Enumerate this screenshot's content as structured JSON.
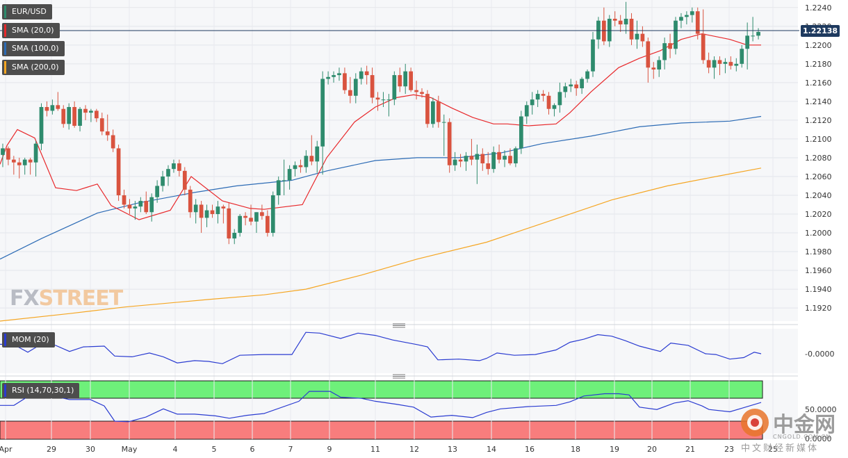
{
  "chart_data": {
    "type": "candlestick",
    "symbol": "EUR/USD",
    "current_price": "1.22138",
    "price_axis": {
      "range": [
        1.1906,
        1.2248
      ],
      "ticks": [
        "1.2240",
        "1.2220",
        "1.2200",
        "1.2180",
        "1.2160",
        "1.2140",
        "1.2120",
        "1.2100",
        "1.2080",
        "1.2060",
        "1.2040",
        "1.2020",
        "1.2000",
        "1.1980",
        "1.1960",
        "1.1940",
        "1.1920"
      ]
    },
    "x_axis_labels": [
      "Apr",
      "29",
      "30",
      "May",
      "4",
      "5",
      "6",
      "7",
      "9",
      "11",
      "12",
      "13",
      "14",
      "16",
      "18",
      "19",
      "20",
      "21",
      "23",
      "25"
    ],
    "legends": {
      "symbol": "EUR/USD",
      "sma20": "SMA (20,0)",
      "sma100": "SMA (100,0)",
      "sma200": "SMA (200,0)",
      "mom": "MOM (20)",
      "rsi": "RSI (14,70,30,1)"
    },
    "indicator_ticks": {
      "mom": "-0.0000",
      "rsi_mid": "50.0000",
      "rsi_low": "0.0000"
    },
    "candles": [
      [
        1.2083,
        1.2095,
        1.207,
        1.209
      ],
      [
        1.209,
        1.2092,
        1.2072,
        1.2078
      ],
      [
        1.2078,
        1.2082,
        1.2062,
        1.2075
      ],
      [
        1.2075,
        1.208,
        1.2058,
        1.2072
      ],
      [
        1.2072,
        1.208,
        1.2062,
        1.2078
      ],
      [
        1.2078,
        1.208,
        1.2062,
        1.2075
      ],
      [
        1.2075,
        1.2098,
        1.206,
        1.2095
      ],
      [
        1.2095,
        1.2138,
        1.2088,
        1.2134
      ],
      [
        1.2134,
        1.214,
        1.2124,
        1.213
      ],
      [
        1.213,
        1.2142,
        1.2126,
        1.2136
      ],
      [
        1.2136,
        1.215,
        1.213,
        1.2132
      ],
      [
        1.2132,
        1.2136,
        1.2112,
        1.2116
      ],
      [
        1.2116,
        1.2138,
        1.211,
        1.2134
      ],
      [
        1.2134,
        1.214,
        1.2112,
        1.2114
      ],
      [
        1.2114,
        1.2134,
        1.2108,
        1.2132
      ],
      [
        1.2132,
        1.2136,
        1.212,
        1.2128
      ],
      [
        1.2128,
        1.2132,
        1.2118,
        1.213
      ],
      [
        1.213,
        1.2132,
        1.2118,
        1.2122
      ],
      [
        1.2122,
        1.2128,
        1.2104,
        1.2108
      ],
      [
        1.2108,
        1.2126,
        1.2098,
        1.2104
      ],
      [
        1.2104,
        1.211,
        1.2086,
        1.209
      ],
      [
        1.209,
        1.2094,
        1.2034,
        1.204
      ],
      [
        1.204,
        1.2046,
        1.2026,
        1.203
      ],
      [
        1.203,
        1.2036,
        1.202,
        1.2026
      ],
      [
        1.2026,
        1.2034,
        1.2014,
        1.2028
      ],
      [
        1.2028,
        1.2038,
        1.2022,
        1.2034
      ],
      [
        1.2034,
        1.2044,
        1.202,
        1.2022
      ],
      [
        1.2022,
        1.2042,
        1.2012,
        1.2038
      ],
      [
        1.2038,
        1.2056,
        1.2032,
        1.205
      ],
      [
        1.205,
        1.2066,
        1.2044,
        1.206
      ],
      [
        1.206,
        1.2072,
        1.205,
        1.2068
      ],
      [
        1.2068,
        1.2078,
        1.2064,
        1.2074
      ],
      [
        1.2074,
        1.2078,
        1.206,
        1.2066
      ],
      [
        1.2066,
        1.207,
        1.204,
        1.2046
      ],
      [
        1.2046,
        1.205,
        1.2016,
        1.2022
      ],
      [
        1.2022,
        1.2036,
        1.201,
        1.203
      ],
      [
        1.203,
        1.2034,
        1.2,
        1.2016
      ],
      [
        1.2016,
        1.203,
        1.2006,
        1.2024
      ],
      [
        1.2024,
        1.203,
        1.2016,
        1.202
      ],
      [
        1.202,
        1.2034,
        1.201,
        1.2028
      ],
      [
        1.2028,
        1.203,
        1.201,
        1.2026
      ],
      [
        1.2026,
        1.2032,
        1.1988,
        1.1994
      ],
      [
        1.1994,
        1.2004,
        1.1988,
        1.2
      ],
      [
        1.2,
        1.202,
        1.1996,
        1.2018
      ],
      [
        1.2018,
        1.2022,
        1.2008,
        1.2016
      ],
      [
        1.2016,
        1.203,
        1.2008,
        1.2012
      ],
      [
        1.2012,
        1.2022,
        1.2,
        1.2022
      ],
      [
        1.2022,
        1.203,
        1.2014,
        1.2018
      ],
      [
        1.2018,
        1.2024,
        1.1996,
        1.2
      ],
      [
        1.2,
        1.2044,
        1.1996,
        1.204
      ],
      [
        1.204,
        1.206,
        1.203,
        1.2056
      ],
      [
        1.2056,
        1.2078,
        1.204,
        1.2056
      ],
      [
        1.2056,
        1.2072,
        1.2046,
        1.2068
      ],
      [
        1.2068,
        1.2076,
        1.206,
        1.2072
      ],
      [
        1.2072,
        1.2078,
        1.2064,
        1.207
      ],
      [
        1.207,
        1.2088,
        1.2064,
        1.2082
      ],
      [
        1.2082,
        1.2104,
        1.2072,
        1.2076
      ],
      [
        1.2076,
        1.2098,
        1.2064,
        1.2092
      ],
      [
        1.2092,
        1.2172,
        1.2062,
        1.2164
      ],
      [
        1.2164,
        1.2172,
        1.2158,
        1.2166
      ],
      [
        1.2166,
        1.2172,
        1.216,
        1.2168
      ],
      [
        1.2168,
        1.2176,
        1.2162,
        1.217
      ],
      [
        1.217,
        1.2176,
        1.2148,
        1.2152
      ],
      [
        1.2152,
        1.2166,
        1.2138,
        1.2146
      ],
      [
        1.2146,
        1.217,
        1.2138,
        1.2164
      ],
      [
        1.2164,
        1.2176,
        1.2158,
        1.2172
      ],
      [
        1.2172,
        1.2178,
        1.2158,
        1.2168
      ],
      [
        1.2168,
        1.2176,
        1.2138,
        1.2144
      ],
      [
        1.2144,
        1.215,
        1.213,
        1.2142
      ],
      [
        1.2142,
        1.215,
        1.2134,
        1.2142
      ],
      [
        1.2142,
        1.2148,
        1.2124,
        1.2142
      ],
      [
        1.2142,
        1.2172,
        1.2136,
        1.2168
      ],
      [
        1.2168,
        1.2176,
        1.215,
        1.2156
      ],
      [
        1.2156,
        1.218,
        1.2148,
        1.2172
      ],
      [
        1.2172,
        1.2176,
        1.215,
        1.2152
      ],
      [
        1.2152,
        1.2162,
        1.2142,
        1.215
      ],
      [
        1.215,
        1.2154,
        1.2144,
        1.2148
      ],
      [
        1.2148,
        1.2152,
        1.2112,
        1.2116
      ],
      [
        1.2116,
        1.2144,
        1.2112,
        1.214
      ],
      [
        1.214,
        1.2146,
        1.2112,
        1.2118
      ],
      [
        1.2118,
        1.2126,
        1.2082,
        1.2118
      ],
      [
        1.2118,
        1.2122,
        1.2064,
        1.2072
      ],
      [
        1.2072,
        1.2086,
        1.2066,
        1.2078
      ],
      [
        1.2078,
        1.2084,
        1.207,
        1.2076
      ],
      [
        1.2076,
        1.2086,
        1.2066,
        1.2082
      ],
      [
        1.2082,
        1.21,
        1.2072,
        1.2078
      ],
      [
        1.2078,
        1.2094,
        1.2052,
        1.2084
      ],
      [
        1.2084,
        1.209,
        1.2066,
        1.2074
      ],
      [
        1.2074,
        1.2086,
        1.2062,
        1.2068
      ],
      [
        1.2068,
        1.2092,
        1.2064,
        1.2086
      ],
      [
        1.2086,
        1.2094,
        1.2074,
        1.2078
      ],
      [
        1.2078,
        1.2088,
        1.207,
        1.2082
      ],
      [
        1.2082,
        1.209,
        1.2072,
        1.2074
      ],
      [
        1.2074,
        1.2092,
        1.207,
        1.209
      ],
      [
        1.209,
        1.213,
        1.2084,
        1.2124
      ],
      [
        1.2124,
        1.214,
        1.2116,
        1.2136
      ],
      [
        1.2136,
        1.215,
        1.2126,
        1.2142
      ],
      [
        1.2142,
        1.2152,
        1.2134,
        1.2148
      ],
      [
        1.2148,
        1.2152,
        1.214,
        1.2146
      ],
      [
        1.2146,
        1.215,
        1.2126,
        1.2132
      ],
      [
        1.2132,
        1.2138,
        1.2124,
        1.2136
      ],
      [
        1.2136,
        1.216,
        1.2128,
        1.215
      ],
      [
        1.215,
        1.216,
        1.2144,
        1.2156
      ],
      [
        1.2156,
        1.2164,
        1.215,
        1.2158
      ],
      [
        1.2158,
        1.2162,
        1.2146,
        1.2154
      ],
      [
        1.2154,
        1.2166,
        1.2148,
        1.2164
      ],
      [
        1.2164,
        1.2174,
        1.216,
        1.2172
      ],
      [
        1.2172,
        1.2214,
        1.2166,
        1.2206
      ],
      [
        1.2206,
        1.223,
        1.2196,
        1.2226
      ],
      [
        1.2226,
        1.224,
        1.22,
        1.2204
      ],
      [
        1.2204,
        1.2232,
        1.2198,
        1.2228
      ],
      [
        1.2228,
        1.2236,
        1.222,
        1.2226
      ],
      [
        1.2226,
        1.2232,
        1.2214,
        1.2222
      ],
      [
        1.2222,
        1.2246,
        1.2212,
        1.2228
      ],
      [
        1.2228,
        1.2234,
        1.22,
        1.2206
      ],
      [
        1.2206,
        1.2226,
        1.2196,
        1.2212
      ],
      [
        1.2212,
        1.222,
        1.2198,
        1.2204
      ],
      [
        1.2204,
        1.2208,
        1.216,
        1.2176
      ],
      [
        1.2176,
        1.2182,
        1.2164,
        1.2174
      ],
      [
        1.2174,
        1.2188,
        1.2166,
        1.2184
      ],
      [
        1.2184,
        1.2208,
        1.2174,
        1.2202
      ],
      [
        1.2202,
        1.2212,
        1.2186,
        1.2196
      ],
      [
        1.2196,
        1.223,
        1.219,
        1.2226
      ],
      [
        1.2226,
        1.2234,
        1.2218,
        1.223
      ],
      [
        1.223,
        1.2236,
        1.2222,
        1.2232
      ],
      [
        1.2232,
        1.224,
        1.2224,
        1.2236
      ],
      [
        1.2236,
        1.224,
        1.2206,
        1.2212
      ],
      [
        1.2212,
        1.2238,
        1.218,
        1.2184
      ],
      [
        1.2184,
        1.2192,
        1.217,
        1.2176
      ],
      [
        1.2176,
        1.2188,
        1.2164,
        1.2184
      ],
      [
        1.2184,
        1.2188,
        1.2168,
        1.218
      ],
      [
        1.218,
        1.2186,
        1.217,
        1.2182
      ],
      [
        1.2182,
        1.2188,
        1.2174,
        1.2178
      ],
      [
        1.2178,
        1.2186,
        1.2172,
        1.218
      ],
      [
        1.218,
        1.22,
        1.2176,
        1.2196
      ],
      [
        1.2196,
        1.2224,
        1.2174,
        1.221
      ],
      [
        1.221,
        1.223,
        1.2204,
        1.221
      ],
      [
        1.221,
        1.2218,
        1.2206,
        1.2214
      ]
    ],
    "sma20": [
      [
        0,
        1.2073
      ],
      [
        10,
        1.2093
      ],
      [
        25,
        1.211
      ],
      [
        50,
        1.2101
      ],
      [
        80,
        1.2048
      ],
      [
        110,
        1.2045
      ],
      [
        140,
        1.2052
      ],
      [
        160,
        1.2029
      ],
      [
        200,
        1.2014
      ],
      [
        245,
        1.2024
      ],
      [
        275,
        1.206
      ],
      [
        320,
        1.2034
      ],
      [
        360,
        1.2026
      ],
      [
        380,
        1.2025
      ],
      [
        435,
        1.203
      ],
      [
        470,
        1.208
      ],
      [
        510,
        1.2118
      ],
      [
        540,
        1.2134
      ],
      [
        570,
        1.2144
      ],
      [
        595,
        1.2147
      ],
      [
        620,
        1.2144
      ],
      [
        650,
        1.2133
      ],
      [
        680,
        1.2123
      ],
      [
        710,
        1.2116
      ],
      [
        730,
        1.2116
      ],
      [
        760,
        1.2114
      ],
      [
        800,
        1.2116
      ],
      [
        820,
        1.2128
      ],
      [
        850,
        1.215
      ],
      [
        890,
        1.2176
      ],
      [
        920,
        1.2186
      ],
      [
        950,
        1.2194
      ],
      [
        980,
        1.2206
      ],
      [
        1010,
        1.2212
      ],
      [
        1050,
        1.2206
      ],
      [
        1075,
        1.22
      ],
      [
        1095,
        1.22
      ]
    ],
    "sma100": [
      [
        0,
        1.1972
      ],
      [
        60,
        1.1994
      ],
      [
        140,
        1.2021
      ],
      [
        200,
        1.2032
      ],
      [
        280,
        1.2043
      ],
      [
        340,
        1.205
      ],
      [
        420,
        1.2056
      ],
      [
        470,
        1.2066
      ],
      [
        540,
        1.2077
      ],
      [
        600,
        1.208
      ],
      [
        660,
        1.208
      ],
      [
        720,
        1.2085
      ],
      [
        780,
        1.2095
      ],
      [
        850,
        1.2103
      ],
      [
        920,
        1.2113
      ],
      [
        980,
        1.2117
      ],
      [
        1050,
        1.2119
      ],
      [
        1095,
        1.2124
      ]
    ],
    "sma200": [
      [
        0,
        1.1906
      ],
      [
        100,
        1.1914
      ],
      [
        180,
        1.1921
      ],
      [
        300,
        1.1929
      ],
      [
        380,
        1.1934
      ],
      [
        440,
        1.194
      ],
      [
        520,
        1.1955
      ],
      [
        600,
        1.1972
      ],
      [
        700,
        1.199
      ],
      [
        800,
        1.2015
      ],
      [
        880,
        1.2035
      ],
      [
        960,
        1.205
      ],
      [
        1030,
        1.206
      ],
      [
        1095,
        1.2069
      ]
    ],
    "mom": [
      [
        0,
        0.62
      ],
      [
        20,
        0.6
      ],
      [
        40,
        0.1
      ],
      [
        60,
        0.65
      ],
      [
        80,
        0.55
      ],
      [
        100,
        0.15
      ],
      [
        120,
        0.45
      ],
      [
        150,
        0.5
      ],
      [
        165,
        -0.15
      ],
      [
        190,
        -0.2
      ],
      [
        215,
        0.05
      ],
      [
        235,
        -0.2
      ],
      [
        255,
        -0.6
      ],
      [
        280,
        -0.45
      ],
      [
        300,
        -0.5
      ],
      [
        320,
        -0.65
      ],
      [
        345,
        -0.1
      ],
      [
        380,
        -0.05
      ],
      [
        420,
        -0.05
      ],
      [
        440,
        1.4
      ],
      [
        460,
        1.35
      ],
      [
        490,
        1.0
      ],
      [
        515,
        1.35
      ],
      [
        540,
        1.2
      ],
      [
        565,
        0.9
      ],
      [
        600,
        0.6
      ],
      [
        615,
        0.45
      ],
      [
        630,
        -0.4
      ],
      [
        660,
        -0.35
      ],
      [
        690,
        -0.45
      ],
      [
        700,
        -0.3
      ],
      [
        715,
        0.05
      ],
      [
        740,
        -0.1
      ],
      [
        770,
        -0.05
      ],
      [
        800,
        0.25
      ],
      [
        820,
        0.75
      ],
      [
        840,
        0.95
      ],
      [
        860,
        1.25
      ],
      [
        880,
        1.15
      ],
      [
        900,
        0.85
      ],
      [
        920,
        0.5
      ],
      [
        950,
        0.15
      ],
      [
        965,
        0.7
      ],
      [
        990,
        0.55
      ],
      [
        1015,
        0.0
      ],
      [
        1030,
        -0.05
      ],
      [
        1050,
        -0.35
      ],
      [
        1070,
        -0.25
      ],
      [
        1085,
        0.1
      ],
      [
        1095,
        0.0
      ]
    ],
    "rsi": [
      [
        0,
        58
      ],
      [
        20,
        58
      ],
      [
        40,
        73
      ],
      [
        60,
        78
      ],
      [
        80,
        73
      ],
      [
        100,
        68
      ],
      [
        130,
        68
      ],
      [
        150,
        57
      ],
      [
        165,
        31
      ],
      [
        185,
        30
      ],
      [
        210,
        38
      ],
      [
        235,
        52
      ],
      [
        255,
        43
      ],
      [
        280,
        43
      ],
      [
        310,
        40
      ],
      [
        330,
        36
      ],
      [
        355,
        41
      ],
      [
        380,
        44
      ],
      [
        430,
        65
      ],
      [
        445,
        82
      ],
      [
        475,
        82
      ],
      [
        490,
        72
      ],
      [
        520,
        70
      ],
      [
        540,
        65
      ],
      [
        570,
        60
      ],
      [
        595,
        55
      ],
      [
        620,
        38
      ],
      [
        650,
        41
      ],
      [
        680,
        37
      ],
      [
        700,
        46
      ],
      [
        720,
        52
      ],
      [
        760,
        56
      ],
      [
        800,
        58
      ],
      [
        820,
        64
      ],
      [
        840,
        74
      ],
      [
        870,
        78
      ],
      [
        890,
        78
      ],
      [
        905,
        76
      ],
      [
        920,
        55
      ],
      [
        945,
        51
      ],
      [
        970,
        62
      ],
      [
        990,
        66
      ],
      [
        1010,
        57
      ],
      [
        1020,
        51
      ],
      [
        1050,
        47
      ],
      [
        1070,
        54
      ],
      [
        1095,
        63
      ]
    ]
  }
}
